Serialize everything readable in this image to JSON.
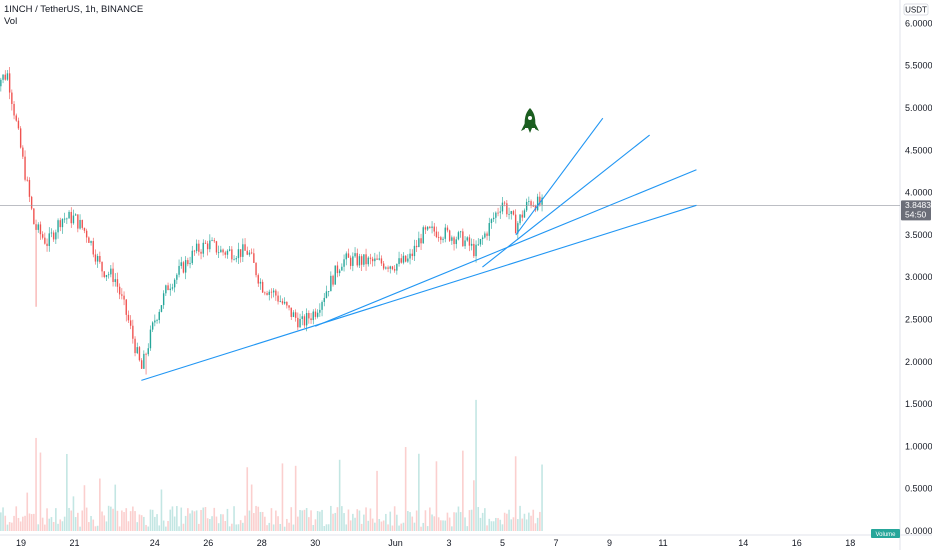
{
  "header": {
    "title": "1INCH / TetherUS, 1h, BINANCE",
    "volume_label": "Vol"
  },
  "price_axis": {
    "currency": "USDT",
    "ticks": [
      "6.0000",
      "5.5000",
      "5.0000",
      "4.5000",
      "4.0000",
      "3.5000",
      "3.0000",
      "2.5000",
      "2.0000",
      "1.5000",
      "1.0000",
      "0.5000",
      "0.0000"
    ]
  },
  "time_axis": {
    "ticks": [
      "19",
      "21",
      "24",
      "26",
      "28",
      "30",
      "Jun",
      "3",
      "5",
      "7",
      "9",
      "11",
      "14",
      "16",
      "18"
    ]
  },
  "last_price": {
    "value": "3.8483",
    "countdown": "54:50",
    "color": "#787b86"
  },
  "volume_tag": "Volume",
  "colors": {
    "up": "#26a69a",
    "down": "#ef5350",
    "trendline": "#2196f3",
    "rocket": "#1b5e20",
    "pricetag": "#6b6e78",
    "voltag": "#26a69a"
  },
  "chart_data": {
    "type": "candlestick",
    "symbol": "1INCH / TetherUS",
    "interval": "1h",
    "exchange": "BINANCE",
    "ylim": [
      0,
      6.0
    ],
    "price_path": [
      {
        "x": "May 18",
        "y": 5.3
      },
      {
        "x": "May 18 12:00",
        "y": 5.4
      },
      {
        "x": "May 19",
        "y": 4.5
      },
      {
        "x": "May 19 12:00",
        "y": 3.6
      },
      {
        "x": "May 20",
        "y": 3.4
      },
      {
        "x": "May 20 12:00",
        "y": 3.7
      },
      {
        "x": "May 21",
        "y": 3.7
      },
      {
        "x": "May 21 12:00",
        "y": 3.5
      },
      {
        "x": "May 22",
        "y": 3.1
      },
      {
        "x": "May 22 12:00",
        "y": 3.0
      },
      {
        "x": "May 23",
        "y": 2.5
      },
      {
        "x": "May 23 12:00",
        "y": 1.9
      },
      {
        "x": "May 24",
        "y": 2.5
      },
      {
        "x": "May 24 12:00",
        "y": 2.9
      },
      {
        "x": "May 25",
        "y": 3.1
      },
      {
        "x": "May 25 12:00",
        "y": 3.3
      },
      {
        "x": "May 26",
        "y": 3.4
      },
      {
        "x": "May 26 12:00",
        "y": 3.3
      },
      {
        "x": "May 27",
        "y": 3.3
      },
      {
        "x": "May 27 12:00",
        "y": 3.3
      },
      {
        "x": "May 28",
        "y": 2.9
      },
      {
        "x": "May 28 12:00",
        "y": 2.8
      },
      {
        "x": "May 29",
        "y": 2.6
      },
      {
        "x": "May 29 12:00",
        "y": 2.45
      },
      {
        "x": "May 30",
        "y": 2.6
      },
      {
        "x": "May 30 12:00",
        "y": 2.9
      },
      {
        "x": "May 31",
        "y": 3.2
      },
      {
        "x": "May 31 12:00",
        "y": 3.2
      },
      {
        "x": "Jun 1",
        "y": 3.15
      },
      {
        "x": "Jun 1 12:00",
        "y": 3.2
      },
      {
        "x": "Jun 2",
        "y": 3.5
      },
      {
        "x": "Jun 2 12:00",
        "y": 3.55
      },
      {
        "x": "Jun 3",
        "y": 3.5
      },
      {
        "x": "Jun 3 12:00",
        "y": 3.45
      },
      {
        "x": "Jun 4",
        "y": 3.3
      },
      {
        "x": "Jun 4 12:00",
        "y": 3.6
      },
      {
        "x": "Jun 5",
        "y": 3.9
      },
      {
        "x": "Jun 5 12:00",
        "y": 3.6
      },
      {
        "x": "Jun 6",
        "y": 3.9
      },
      {
        "x": "Jun 6 12:00",
        "y": 3.85
      }
    ],
    "volume_max_millions": 1.55,
    "trendlines": [
      {
        "from": {
          "x": "May 23 12:00",
          "y": 1.78
        },
        "to": {
          "x": "Jun 12 06:00",
          "y": 3.85
        }
      },
      {
        "from": {
          "x": "May 30",
          "y": 2.42
        },
        "to": {
          "x": "Jun 12 06:00",
          "y": 4.27
        }
      },
      {
        "from": {
          "x": "Jun 4 06:00",
          "y": 3.12
        },
        "to": {
          "x": "Jun 10 12:00",
          "y": 4.68
        }
      },
      {
        "from": {
          "x": "Jun 5 12:00",
          "y": 3.5
        },
        "to": {
          "x": "Jun 8 18:00",
          "y": 4.88
        }
      }
    ],
    "grid": false,
    "legend": "none"
  }
}
